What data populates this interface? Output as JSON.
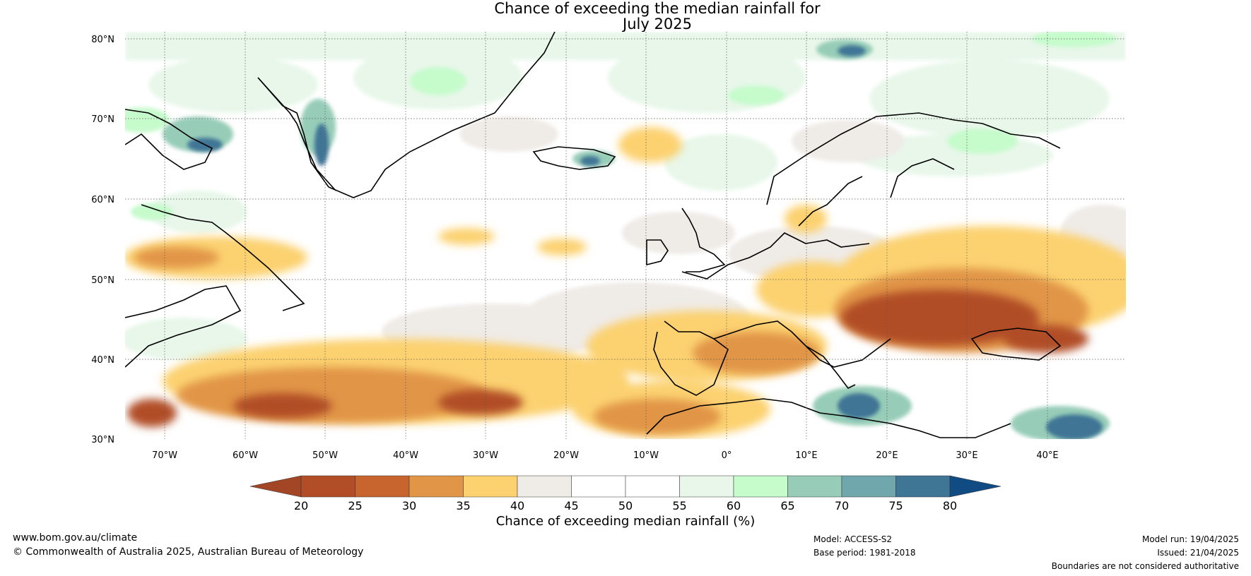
{
  "title": {
    "line1": "Chance of exceeding the median rainfall for",
    "line2": "July 2025"
  },
  "map": {
    "region": "Europe / North Atlantic",
    "lat_labels": [
      "80°N",
      "70°N",
      "60°N",
      "50°N",
      "40°N",
      "30°N"
    ],
    "lon_labels": [
      "70°W",
      "60°W",
      "50°W",
      "40°W",
      "30°W",
      "20°W",
      "10°W",
      "0°",
      "10°E",
      "20°E",
      "30°E",
      "40°E"
    ]
  },
  "colorbar": {
    "ticks": [
      "20",
      "25",
      "30",
      "35",
      "40",
      "45",
      "50",
      "55",
      "60",
      "65",
      "70",
      "75",
      "80"
    ],
    "colors": [
      "#a34626",
      "#b14e28",
      "#c8652e",
      "#e19547",
      "#fcd170",
      "#efebe7",
      "#ffffff",
      "#ffffff",
      "#e8f7ea",
      "#c6fbcc",
      "#97cdb8",
      "#70a7ad",
      "#3f7595",
      "#114b83"
    ],
    "label": "Chance of exceeding median rainfall (%)"
  },
  "footer": {
    "website": "www.bom.gov.au/climate",
    "copyright": "© Commonwealth of Australia 2025, Australian Bureau of Meteorology",
    "model": "Model: ACCESS-S2",
    "base_period": "Base period: 1981-2018",
    "model_run": "Model run: 19/04/2025",
    "issued": "Issued: 21/04/2025",
    "disclaimer": "Boundaries are not considered authoritative"
  }
}
